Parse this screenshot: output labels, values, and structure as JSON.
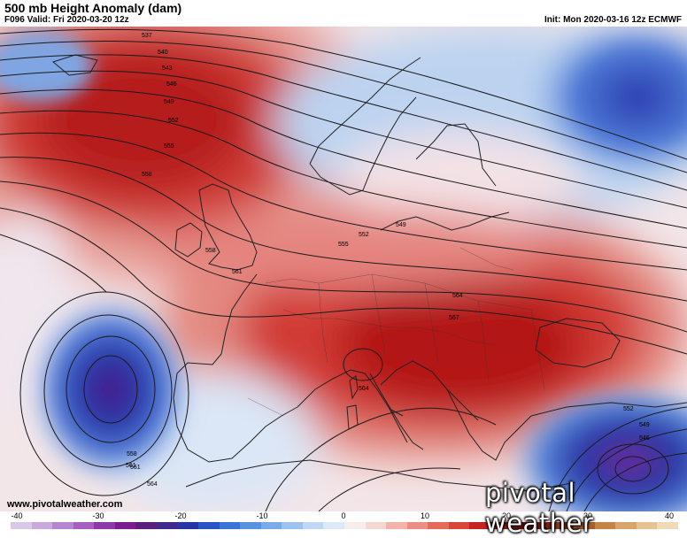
{
  "header": {
    "title": "500 mb Height Anomaly (dam)",
    "valid": "F096 Valid: Fri 2020-03-20 12z",
    "init": "Init: Mon 2020-03-16 12z ECMWF"
  },
  "footer": {
    "website": "www.pivotalweather.com",
    "logo": "pivotal weather"
  },
  "contour_labels": [
    "537",
    "540",
    "543",
    "546",
    "549",
    "552",
    "555",
    "558",
    "558",
    "561",
    "552",
    "549",
    "555",
    "561",
    "564",
    "567",
    "564",
    "558",
    "561",
    "564",
    "552",
    "549",
    "546"
  ],
  "colorbar": {
    "ticks": [
      "-40",
      "-30",
      "-20",
      "-10",
      "0",
      "10",
      "20",
      "30",
      "40"
    ],
    "colors": [
      "#d9c8e8",
      "#c8a8dd",
      "#b585cf",
      "#a45fbf",
      "#8b3aa8",
      "#7a1d8e",
      "#5b1f7b",
      "#3f2a8f",
      "#2535a6",
      "#2a52c4",
      "#3d73d6",
      "#5a90e0",
      "#7aabe8",
      "#9cc3ef",
      "#bdd7f4",
      "#dde9f8",
      "#f7eeec",
      "#f7d5d0",
      "#f2b3aa",
      "#ec8f82",
      "#e46a5c",
      "#d94538",
      "#c82222",
      "#aa1515",
      "#8a0f0f",
      "#7c1f10",
      "#8f3b1a",
      "#a95f2a",
      "#c48445",
      "#d8a66b",
      "#e6c393",
      "#f0dab7"
    ]
  },
  "colors": {
    "warm_core": "#b81818",
    "cool_core": "#2a3fb0",
    "contour": "#1a1a1a",
    "coast": "#222222"
  }
}
